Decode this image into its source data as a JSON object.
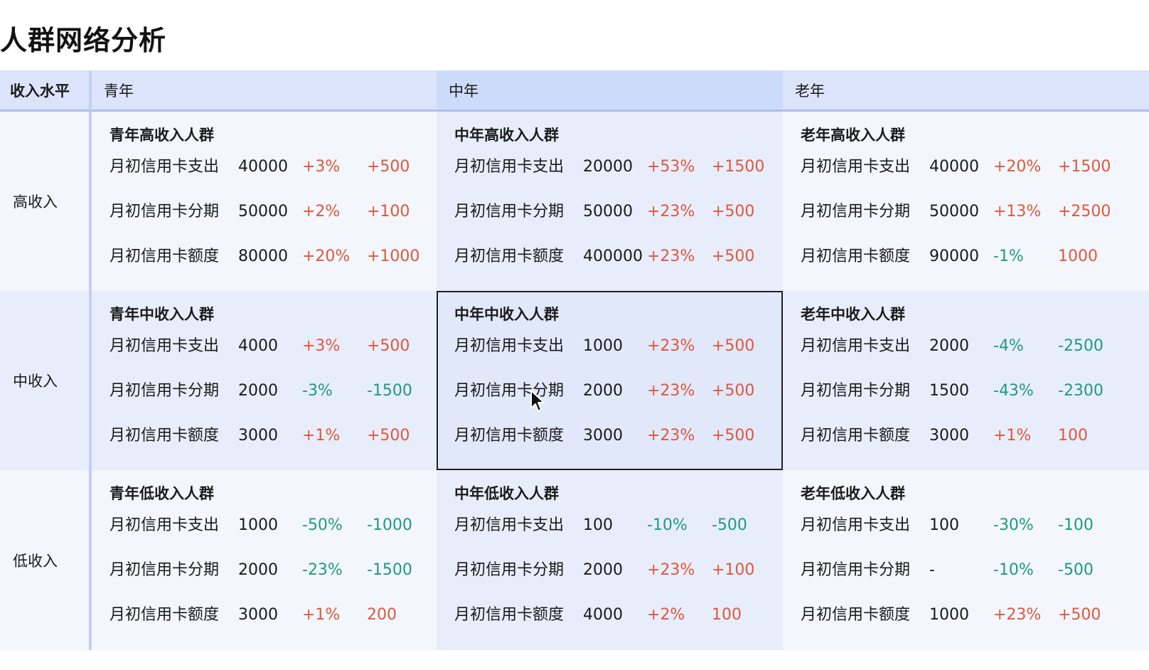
{
  "title": "人群网络分析",
  "header": {
    "row_head": "收入水平",
    "columns": [
      "青年",
      "中年",
      "老年"
    ]
  },
  "colors": {
    "up": "#e0573a",
    "down": "#1f9a7c"
  },
  "rows": [
    {
      "label": "高收入",
      "cells": [
        {
          "name": "青年高收入人群",
          "metrics": [
            {
              "label": "月初信用卡支出",
              "value": "40000",
              "pct": "+3%",
              "delta": "+500",
              "pct_dir": "up",
              "delta_dir": "up"
            },
            {
              "label": "月初信用卡分期",
              "value": "50000",
              "pct": "+2%",
              "delta": "+100",
              "pct_dir": "up",
              "delta_dir": "up"
            },
            {
              "label": "月初信用卡额度",
              "value": "80000",
              "pct": "+20%",
              "delta": "+1000",
              "pct_dir": "up",
              "delta_dir": "up"
            }
          ]
        },
        {
          "name": "中年高收入人群",
          "metrics": [
            {
              "label": "月初信用卡支出",
              "value": "20000",
              "pct": "+53%",
              "delta": "+1500",
              "pct_dir": "up",
              "delta_dir": "up"
            },
            {
              "label": "月初信用卡分期",
              "value": "50000",
              "pct": "+23%",
              "delta": "+500",
              "pct_dir": "up",
              "delta_dir": "up"
            },
            {
              "label": "月初信用卡额度",
              "value": "400000",
              "pct": "+23%",
              "delta": "+500",
              "pct_dir": "up",
              "delta_dir": "up"
            }
          ]
        },
        {
          "name": "老年高收入人群",
          "metrics": [
            {
              "label": "月初信用卡支出",
              "value": "40000",
              "pct": "+20%",
              "delta": "+1500",
              "pct_dir": "up",
              "delta_dir": "up"
            },
            {
              "label": "月初信用卡分期",
              "value": "50000",
              "pct": "+13%",
              "delta": "+2500",
              "pct_dir": "up",
              "delta_dir": "up"
            },
            {
              "label": "月初信用卡额度",
              "value": "90000",
              "pct": "-1%",
              "delta": "1000",
              "pct_dir": "down",
              "delta_dir": "up"
            }
          ]
        }
      ]
    },
    {
      "label": "中收入",
      "cells": [
        {
          "name": "青年中收入人群",
          "metrics": [
            {
              "label": "月初信用卡支出",
              "value": "4000",
              "pct": "+3%",
              "delta": "+500",
              "pct_dir": "up",
              "delta_dir": "up"
            },
            {
              "label": "月初信用卡分期",
              "value": "2000",
              "pct": "-3%",
              "delta": "-1500",
              "pct_dir": "down",
              "delta_dir": "down"
            },
            {
              "label": "月初信用卡额度",
              "value": "3000",
              "pct": "+1%",
              "delta": "+500",
              "pct_dir": "up",
              "delta_dir": "up"
            }
          ]
        },
        {
          "name": "中年中收入人群",
          "metrics": [
            {
              "label": "月初信用卡支出",
              "value": "1000",
              "pct": "+23%",
              "delta": "+500",
              "pct_dir": "up",
              "delta_dir": "up"
            },
            {
              "label": "月初信用卡分期",
              "value": "2000",
              "pct": "+23%",
              "delta": "+500",
              "pct_dir": "up",
              "delta_dir": "up"
            },
            {
              "label": "月初信用卡额度",
              "value": "3000",
              "pct": "+23%",
              "delta": "+500",
              "pct_dir": "up",
              "delta_dir": "up"
            }
          ]
        },
        {
          "name": "老年中收入人群",
          "metrics": [
            {
              "label": "月初信用卡支出",
              "value": "2000",
              "pct": "-4%",
              "delta": "-2500",
              "pct_dir": "down",
              "delta_dir": "down"
            },
            {
              "label": "月初信用卡分期",
              "value": "1500",
              "pct": "-43%",
              "delta": "-2300",
              "pct_dir": "down",
              "delta_dir": "down"
            },
            {
              "label": "月初信用卡额度",
              "value": "3000",
              "pct": "+1%",
              "delta": "100",
              "pct_dir": "up",
              "delta_dir": "up"
            }
          ]
        }
      ]
    },
    {
      "label": "低收入",
      "cells": [
        {
          "name": "青年低收入人群",
          "metrics": [
            {
              "label": "月初信用卡支出",
              "value": "1000",
              "pct": "-50%",
              "delta": "-1000",
              "pct_dir": "down",
              "delta_dir": "down"
            },
            {
              "label": "月初信用卡分期",
              "value": "2000",
              "pct": "-23%",
              "delta": "-1500",
              "pct_dir": "down",
              "delta_dir": "down"
            },
            {
              "label": "月初信用卡额度",
              "value": "3000",
              "pct": "+1%",
              "delta": "200",
              "pct_dir": "up",
              "delta_dir": "up"
            }
          ]
        },
        {
          "name": "中年低收入人群",
          "metrics": [
            {
              "label": "月初信用卡支出",
              "value": "100",
              "pct": "-10%",
              "delta": "-500",
              "pct_dir": "down",
              "delta_dir": "down"
            },
            {
              "label": "月初信用卡分期",
              "value": "2000",
              "pct": "+23%",
              "delta": "+100",
              "pct_dir": "up",
              "delta_dir": "up"
            },
            {
              "label": "月初信用卡额度",
              "value": "4000",
              "pct": "+2%",
              "delta": "100",
              "pct_dir": "up",
              "delta_dir": "up"
            }
          ]
        },
        {
          "name": "老年低收入人群",
          "metrics": [
            {
              "label": "月初信用卡支出",
              "value": "100",
              "pct": "-30%",
              "delta": "-100",
              "pct_dir": "down",
              "delta_dir": "down"
            },
            {
              "label": "月初信用卡分期",
              "value": "-",
              "pct": "-10%",
              "delta": "-500",
              "pct_dir": "down",
              "delta_dir": "down"
            },
            {
              "label": "月初信用卡额度",
              "value": "1000",
              "pct": "+23%",
              "delta": "+500",
              "pct_dir": "up",
              "delta_dir": "up"
            }
          ]
        }
      ]
    }
  ]
}
